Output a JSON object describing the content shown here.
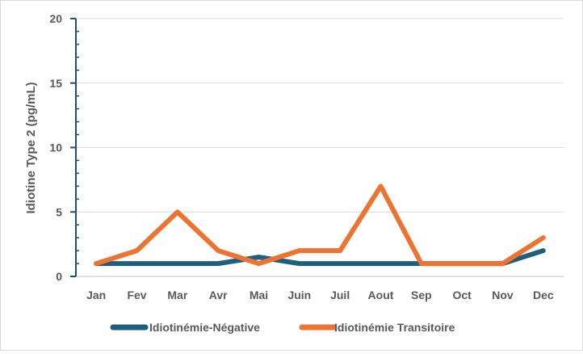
{
  "chart_data": {
    "type": "line",
    "title": "",
    "xlabel": "",
    "ylabel": "Idiotine Type 2 (pg/mL)",
    "ylim": [
      0,
      20
    ],
    "yticks": [
      0,
      5,
      10,
      15,
      20
    ],
    "grid": "horizontal",
    "legend_position": "bottom",
    "categories": [
      "Jan",
      "Fev",
      "Mar",
      "Avr",
      "Mai",
      "Juin",
      "Juil",
      "Aout",
      "Sep",
      "Oct",
      "Nov",
      "Dec"
    ],
    "series": [
      {
        "name": "Idiotinémie-Négative",
        "color": "#1f5e7e",
        "values": [
          1,
          1,
          1,
          1,
          1.5,
          1,
          1,
          1,
          1,
          1,
          1,
          2
        ]
      },
      {
        "name": "Idiotinémie Transitoire",
        "color": "#ed7330",
        "values": [
          1,
          2,
          5,
          2,
          1,
          2,
          2,
          7,
          1,
          1,
          1,
          3
        ]
      }
    ]
  }
}
